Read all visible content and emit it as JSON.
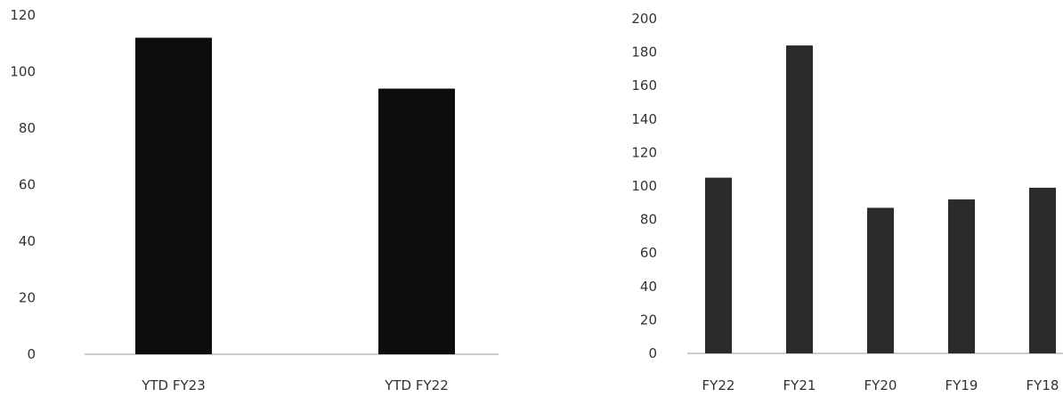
{
  "chart_data": [
    {
      "type": "bar",
      "categories": [
        "YTD FY23",
        "YTD FY22"
      ],
      "values": [
        112,
        94
      ],
      "ylim": [
        0,
        120
      ],
      "yticks": [
        0,
        20,
        40,
        60,
        80,
        100,
        120
      ],
      "title": "",
      "xlabel": "",
      "ylabel": "",
      "grid": false,
      "bar_color": "#0d0d0d"
    },
    {
      "type": "bar",
      "categories": [
        "FY22",
        "FY21",
        "FY20",
        "FY19",
        "FY18"
      ],
      "values": [
        105,
        184,
        87,
        92,
        99
      ],
      "ylim": [
        0,
        200
      ],
      "yticks": [
        0,
        20,
        40,
        60,
        80,
        100,
        120,
        140,
        160,
        180,
        200
      ],
      "title": "",
      "xlabel": "",
      "ylabel": "",
      "grid": false,
      "bar_color": "#2b2b2b"
    }
  ]
}
